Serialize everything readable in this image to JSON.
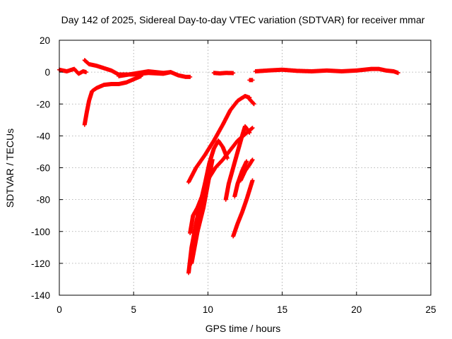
{
  "chart_data": {
    "type": "scatter",
    "title": "Day 142 of 2025, Sidereal Day-to-day VTEC variation (SDTVAR) for receiver mmar",
    "xlabel": "GPS time / hours",
    "ylabel": "SDTVAR / TECUs",
    "xlim": [
      0,
      25
    ],
    "ylim": [
      -140,
      20
    ],
    "xticks": [
      0,
      5,
      10,
      15,
      20,
      25
    ],
    "yticks": [
      20,
      0,
      -20,
      -40,
      -60,
      -80,
      -100,
      -120,
      -140
    ],
    "grid": true,
    "marker": "+",
    "series": [
      {
        "name": "SDTVAR",
        "color": "#ff0000",
        "tracks": [
          {
            "x": [
              0.0,
              0.5,
              1.0,
              1.3,
              1.6,
              1.8
            ],
            "y": [
              1.5,
              0.5,
              2.0,
              -1.0,
              0.5,
              0.0
            ]
          },
          {
            "x": [
              1.7,
              1.85,
              2.0,
              2.2,
              2.5,
              3.0,
              3.5,
              4.0,
              4.5,
              5.0,
              5.5
            ],
            "y": [
              -33,
              -25,
              -18,
              -12,
              -10,
              -8,
              -7.5,
              -7.5,
              -6.5,
              -4.5,
              -2.5
            ]
          },
          {
            "x": [
              1.7,
              2.0,
              2.5,
              3.0,
              3.5,
              4.0,
              5.0,
              6.0,
              7.0,
              7.5,
              8.0,
              8.5,
              8.8
            ],
            "y": [
              7.5,
              5,
              4,
              2.5,
              1,
              -1.5,
              -1.5,
              -0.5,
              -1.0,
              0.0,
              -2.0,
              -3.0,
              -3.0
            ]
          },
          {
            "x": [
              4.0,
              5.0,
              6.0,
              7.0,
              7.5
            ],
            "y": [
              -2.5,
              -1.0,
              0.5,
              -0.5,
              0.0
            ]
          },
          {
            "x": [
              10.4,
              10.8,
              11.2,
              11.7
            ],
            "y": [
              -0.5,
              -0.8,
              -0.5,
              -0.6
            ]
          },
          {
            "x": [
              12.8,
              13.0
            ],
            "y": [
              -5,
              -5
            ]
          },
          {
            "x": [
              13.2,
              14.0,
              15.0,
              16.0,
              17.0,
              18.0,
              19.0,
              20.0,
              21.0,
              21.5,
              22.0,
              22.5,
              22.8
            ],
            "y": [
              0.5,
              1.0,
              1.5,
              0.8,
              0.5,
              1.0,
              0.5,
              1.0,
              2.0,
              2.0,
              1.0,
              0.5,
              -0.5
            ]
          },
          {
            "x": [
              8.7,
              9.2,
              9.8,
              10.4,
              11.0,
              11.5,
              12.0,
              12.5,
              12.8
            ],
            "y": [
              -69,
              -60,
              -52,
              -43,
              -33,
              -24,
              -18,
              -15,
              -16
            ]
          },
          {
            "x": [
              13.1,
              12.8
            ],
            "y": [
              -20,
              -17
            ]
          },
          {
            "x": [
              8.8,
              9.0,
              9.3,
              9.6,
              9.8,
              10.1,
              10.5,
              11.0,
              11.5,
              12.0,
              12.5,
              13.0
            ],
            "y": [
              -101,
              -90,
              -85,
              -78,
              -73,
              -66,
              -60,
              -55,
              -49,
              -43,
              -39,
              -35
            ]
          },
          {
            "x": [
              8.7,
              8.9,
              9.2,
              9.5,
              9.8,
              10.1,
              10.4,
              10.7,
              11.0,
              11.3
            ],
            "y": [
              -126,
              -110,
              -95,
              -82,
              -70,
              -57,
              -48,
              -43,
              -47,
              -54
            ]
          },
          {
            "x": [
              8.9,
              9.3,
              9.7,
              10.0,
              10.3
            ],
            "y": [
              -120,
              -100,
              -85,
              -70,
              -55
            ]
          },
          {
            "x": [
              11.2,
              11.4,
              11.7,
              12.0,
              12.3,
              12.5,
              12.8
            ],
            "y": [
              -80,
              -70,
              -60,
              -50,
              -40,
              -34,
              -38
            ]
          },
          {
            "x": [
              11.8,
              12.0,
              12.3,
              12.6
            ],
            "y": [
              -78,
              -70,
              -62,
              -56
            ]
          },
          {
            "x": [
              11.7,
              12.0,
              12.3,
              12.6,
              12.8,
              13.0
            ],
            "y": [
              -103,
              -95,
              -88,
              -80,
              -74,
              -68
            ]
          },
          {
            "x": [
              12.2,
              12.5,
              12.8,
              13.0
            ],
            "y": [
              -68,
              -62,
              -58,
              -55
            ]
          }
        ]
      }
    ]
  }
}
